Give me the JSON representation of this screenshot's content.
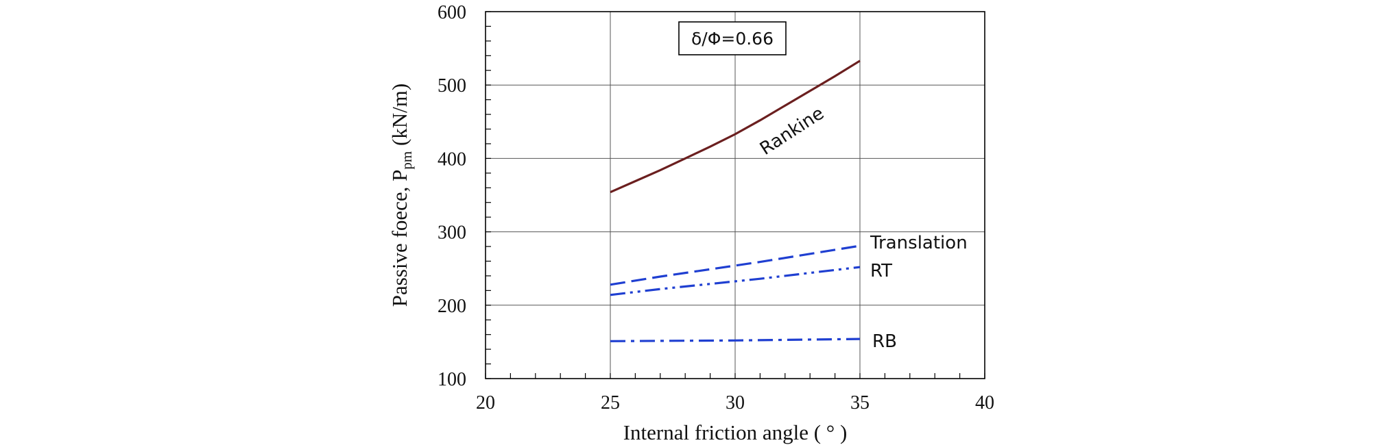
{
  "chart_data": {
    "type": "line",
    "xlabel": "Internal friction angle ( ° )",
    "ylabel_main": "Passive foece, P",
    "ylabel_sub": "pm",
    "ylabel_unit": " (kN/m)",
    "xlim": [
      20,
      40
    ],
    "ylim": [
      100,
      600
    ],
    "xticks": [
      20,
      25,
      30,
      35,
      40
    ],
    "yticks": [
      100,
      200,
      300,
      400,
      500,
      600
    ],
    "x_minor_step": 1,
    "y_minor_step": 20,
    "grid": true,
    "annotation": "δ/Φ=0.66",
    "series": [
      {
        "name": "Rankine",
        "color": "#6b1f1f",
        "style": "solid",
        "label_rotation": -33,
        "x": [
          25,
          26,
          27,
          28,
          29,
          30,
          31,
          32,
          33,
          34,
          35
        ],
        "y": [
          354,
          369,
          384,
          400,
          416,
          433,
          452,
          472,
          492,
          512,
          533
        ]
      },
      {
        "name": "Translation",
        "color": "#1f3fd1",
        "style": "dash",
        "x": [
          25,
          27,
          29,
          31,
          33,
          35
        ],
        "y": [
          228,
          239,
          249,
          259,
          270,
          281
        ]
      },
      {
        "name": "RT",
        "color": "#1f3fd1",
        "style": "dashdotdot",
        "x": [
          25,
          27,
          29,
          31,
          33,
          35
        ],
        "y": [
          214,
          222,
          229,
          236,
          244,
          252
        ]
      },
      {
        "name": "RB",
        "color": "#1f3fd1",
        "style": "dashdot",
        "x": [
          25,
          30,
          35
        ],
        "y": [
          151,
          152,
          154
        ]
      }
    ]
  }
}
